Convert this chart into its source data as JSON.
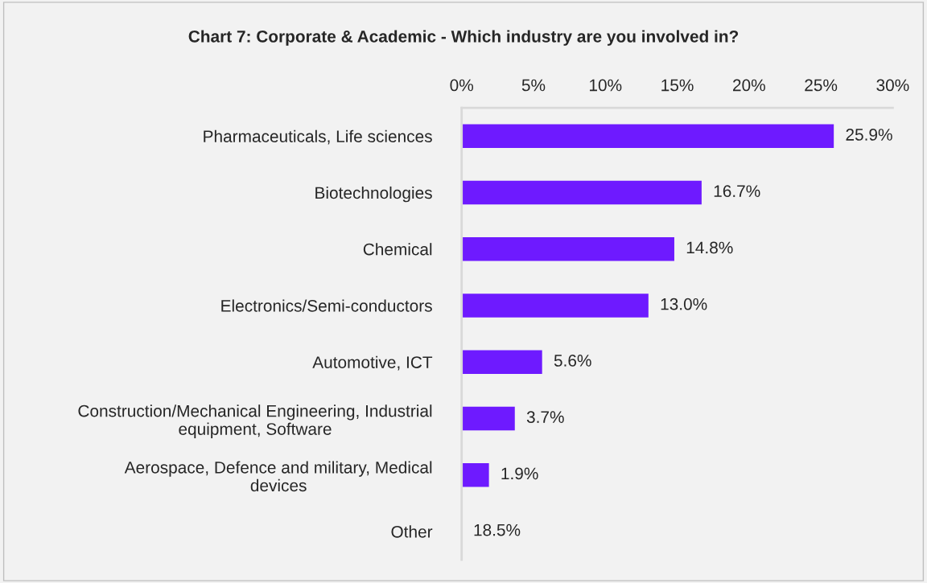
{
  "chart_data": {
    "type": "bar",
    "orientation": "horizontal",
    "title": "Chart 7: Corporate & Academic - Which industry are you involved in?",
    "categories": [
      "Pharmaceuticals, Life sciences",
      "Biotechnologies",
      "Chemical",
      "Electronics/Semi-conductors",
      "Automotive, ICT",
      "Construction/Mechanical Engineering, Industrial\nequipment, Software",
      "Aerospace, Defence and military, Medical\ndevices",
      "Other"
    ],
    "values": [
      25.9,
      16.7,
      14.8,
      13.0,
      5.6,
      3.7,
      1.9,
      null
    ],
    "value_labels": [
      "25.9%",
      "16.7%",
      "14.8%",
      "13.0%",
      "5.6%",
      "3.7%",
      "1.9%",
      "18.5%"
    ],
    "color": "#6e1aff",
    "xlim": [
      0,
      30
    ],
    "xticks": [
      {
        "value": 0,
        "label": "0%"
      },
      {
        "value": 5,
        "label": "5%"
      },
      {
        "value": 10,
        "label": "10%"
      },
      {
        "value": 15,
        "label": "15%"
      },
      {
        "value": 20,
        "label": "20%"
      },
      {
        "value": 25,
        "label": "25%"
      },
      {
        "value": 30,
        "label": "30%"
      }
    ],
    "grid": false,
    "legend": false
  }
}
